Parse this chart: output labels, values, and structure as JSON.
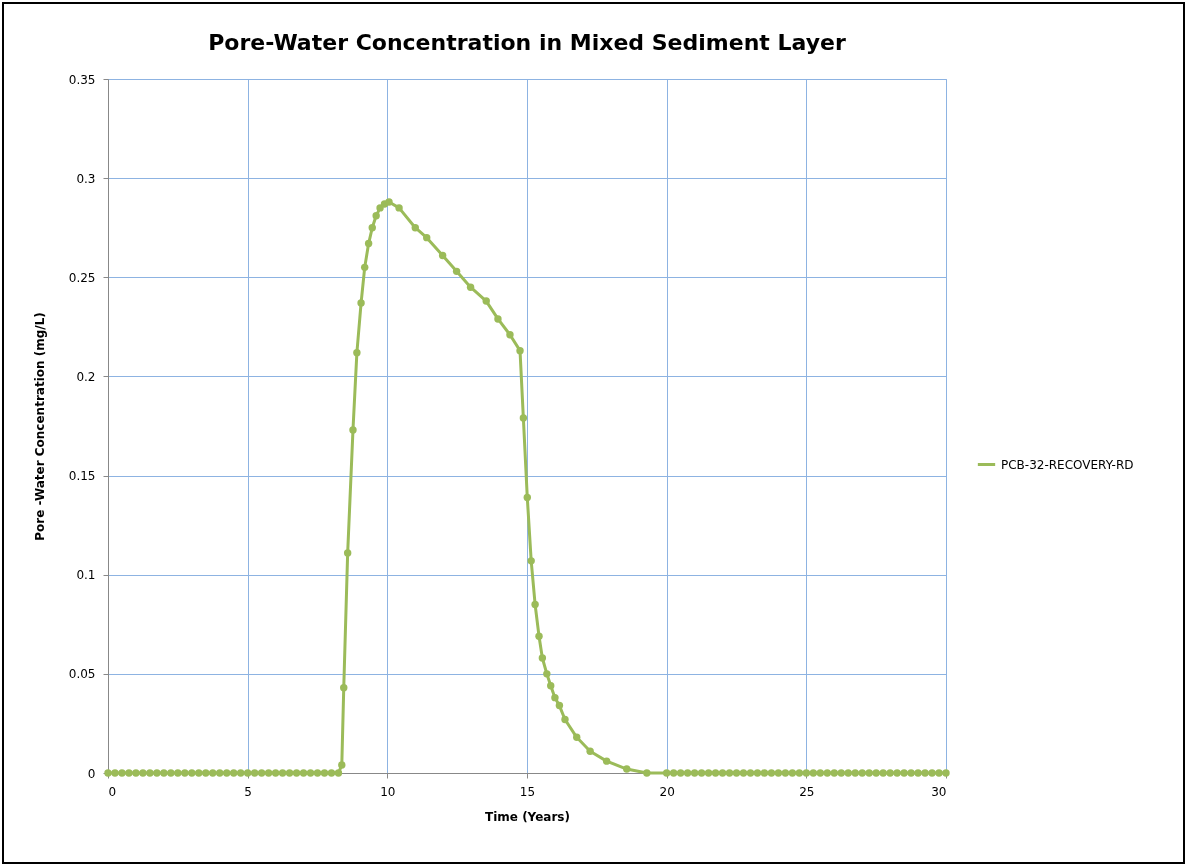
{
  "chart_data": {
    "type": "line",
    "title": "Pore-Water Concentration in Mixed Sediment Layer",
    "xlabel": "Time (Years)",
    "ylabel": "Pore -Water Concentration (mg/L)",
    "xlim": [
      0,
      30
    ],
    "xticks": [
      0,
      5,
      10,
      15,
      20,
      25,
      30
    ],
    "ylim": [
      0,
      0.35
    ],
    "yticks": [
      0,
      0.05,
      0.1,
      0.15,
      0.2,
      0.25,
      0.3,
      0.35
    ],
    "grid": true,
    "legend": "right",
    "marker": "circle",
    "series": [
      {
        "name": "PCB-32-RECOVERY-RD",
        "color": "#9bbb59",
        "x": [
          0,
          0.25,
          0.5,
          0.75,
          1,
          1.25,
          1.5,
          1.75,
          2,
          2.25,
          2.5,
          2.75,
          3,
          3.25,
          3.5,
          3.75,
          4,
          4.25,
          4.5,
          4.75,
          5,
          5.25,
          5.5,
          5.75,
          6,
          6.25,
          6.5,
          6.75,
          7,
          7.25,
          7.5,
          7.75,
          8,
          8.25,
          8.37,
          8.44,
          8.58,
          8.77,
          8.91,
          9.06,
          9.19,
          9.33,
          9.46,
          9.6,
          9.74,
          9.9,
          10.06,
          10.42,
          11,
          11.41,
          11.98,
          12.48,
          12.98,
          13.54,
          13.96,
          14.39,
          14.75,
          14.87,
          15.01,
          15.15,
          15.29,
          15.43,
          15.55,
          15.71,
          15.85,
          16,
          16.16,
          16.36,
          16.78,
          17.26,
          17.85,
          18.57,
          19.29,
          20,
          20.25,
          20.5,
          20.75,
          21,
          21.25,
          21.5,
          21.75,
          22,
          22.25,
          22.5,
          22.75,
          23,
          23.25,
          23.5,
          23.75,
          24,
          24.25,
          24.5,
          24.75,
          25,
          25.25,
          25.5,
          25.75,
          26,
          26.25,
          26.5,
          26.75,
          27,
          27.25,
          27.5,
          27.75,
          28,
          28.25,
          28.5,
          28.75,
          29,
          29.25,
          29.5,
          29.75,
          30
        ],
        "values": [
          0,
          0,
          0,
          0,
          0,
          0,
          0,
          0,
          0,
          0,
          0,
          0,
          0,
          0,
          0,
          0,
          0,
          0,
          0,
          0,
          0,
          0,
          0,
          0,
          0,
          0,
          0,
          0,
          0,
          0,
          0,
          0,
          0,
          0,
          0.004,
          0.043,
          0.111,
          0.173,
          0.212,
          0.237,
          0.255,
          0.267,
          0.275,
          0.281,
          0.285,
          0.287,
          0.288,
          0.285,
          0.275,
          0.27,
          0.261,
          0.253,
          0.245,
          0.238,
          0.229,
          0.221,
          0.213,
          0.179,
          0.139,
          0.107,
          0.085,
          0.069,
          0.058,
          0.05,
          0.044,
          0.038,
          0.034,
          0.027,
          0.018,
          0.011,
          0.006,
          0.002,
          0,
          0,
          0,
          0,
          0,
          0,
          0,
          0,
          0,
          0,
          0,
          0,
          0,
          0,
          0,
          0,
          0,
          0,
          0,
          0,
          0,
          0,
          0,
          0,
          0,
          0,
          0,
          0,
          0,
          0,
          0,
          0,
          0,
          0,
          0,
          0,
          0,
          0,
          0,
          0,
          0,
          0
        ]
      }
    ]
  }
}
